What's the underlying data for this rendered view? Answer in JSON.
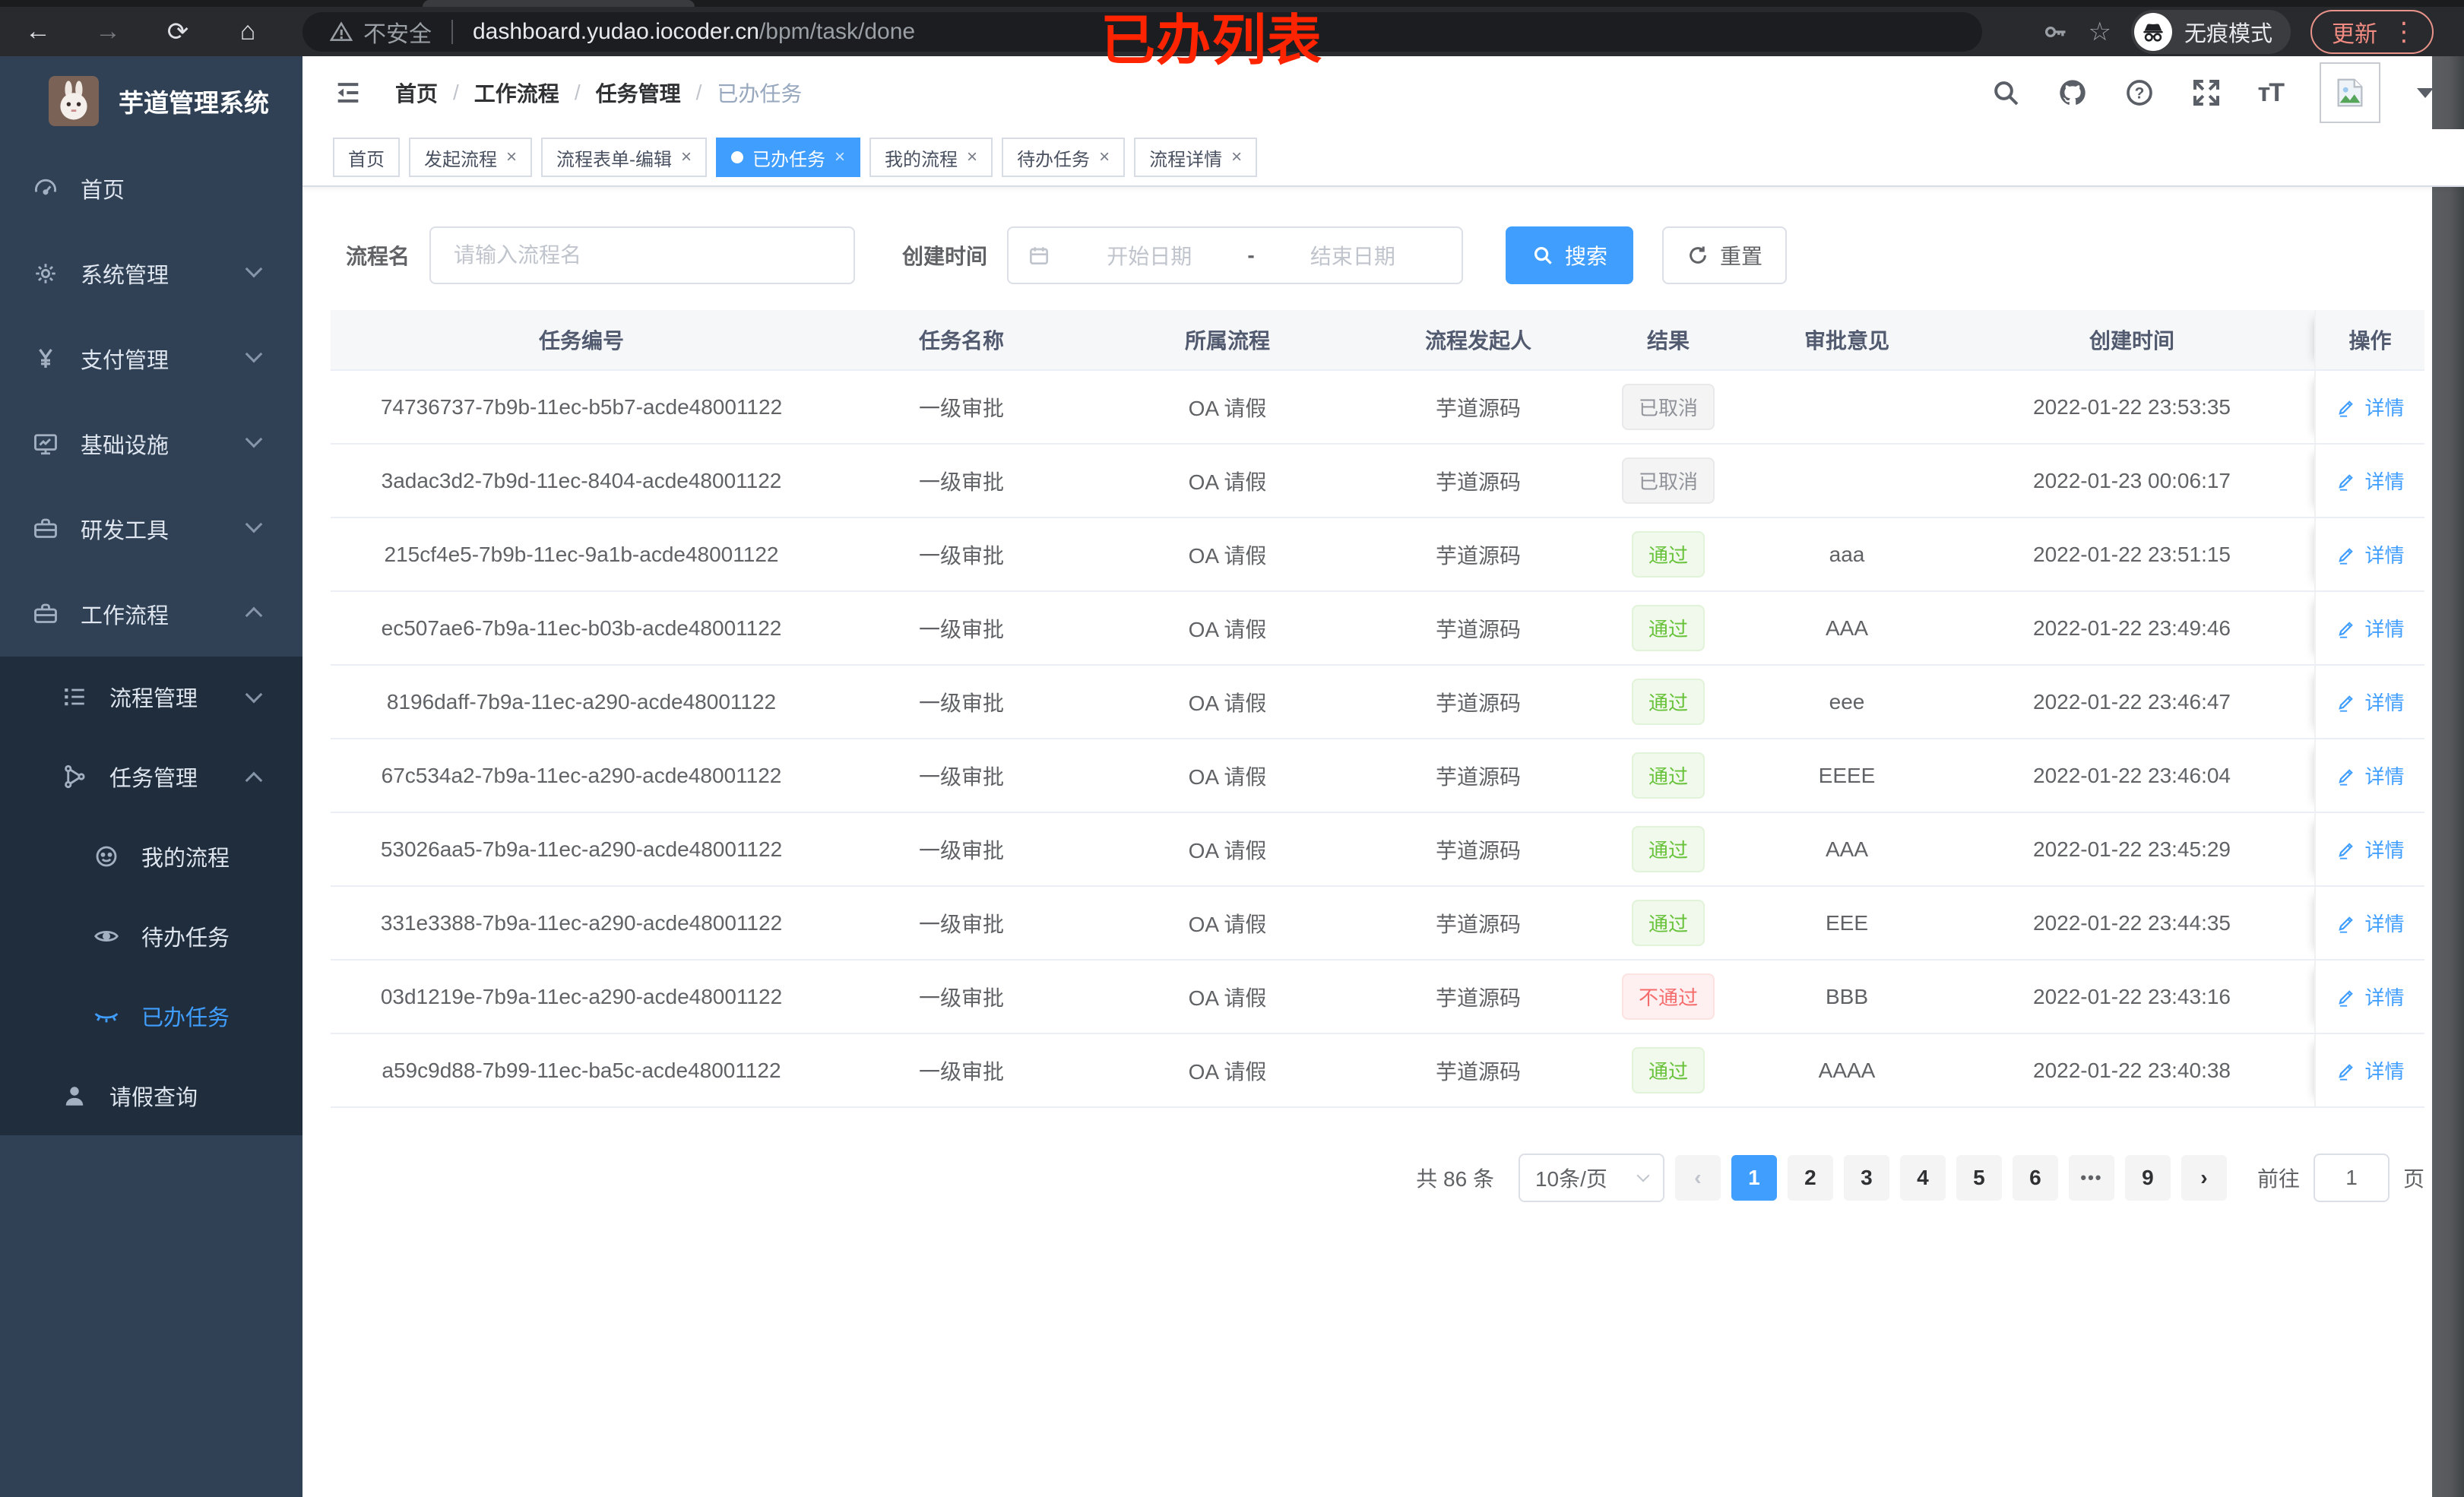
{
  "browser": {
    "security_label": "不安全",
    "url_host": "dashboard.yudao.iocoder.cn",
    "url_path": "/bpm/task/done",
    "incognito_label": "无痕模式",
    "update_label": "更新"
  },
  "annotation": {
    "text": "已办列表",
    "color": "#ff2400"
  },
  "sidebar": {
    "app_title": "芋道管理系统",
    "items": [
      {
        "label": "首页",
        "icon": "gauge-icon",
        "level": 1
      },
      {
        "label": "系统管理",
        "icon": "gear-icon",
        "level": 1,
        "chevron": "down"
      },
      {
        "label": "支付管理",
        "icon": "yen-icon",
        "level": 1,
        "chevron": "down"
      },
      {
        "label": "基础设施",
        "icon": "monitor-icon",
        "level": 1,
        "chevron": "down"
      },
      {
        "label": "研发工具",
        "icon": "toolbox-icon",
        "level": 1,
        "chevron": "down"
      },
      {
        "label": "工作流程",
        "icon": "toolbox-icon",
        "level": 1,
        "chevron": "up"
      },
      {
        "label": "流程管理",
        "icon": "list-tree-icon",
        "level": 2,
        "chevron": "down",
        "submenu": true
      },
      {
        "label": "任务管理",
        "icon": "flow-icon",
        "level": 2,
        "chevron": "up",
        "submenu": true
      },
      {
        "label": "我的流程",
        "icon": "face-icon",
        "level": 3,
        "submenu": true
      },
      {
        "label": "待办任务",
        "icon": "eye-icon",
        "level": 3,
        "submenu": true
      },
      {
        "label": "已办任务",
        "icon": "eye-closed-icon",
        "level": 3,
        "submenu": true,
        "active": true
      },
      {
        "label": "请假查询",
        "icon": "user-icon",
        "level": 2,
        "submenu": true
      }
    ]
  },
  "header": {
    "breadcrumb": [
      {
        "label": "首页"
      },
      {
        "label": "工作流程"
      },
      {
        "label": "任务管理"
      },
      {
        "label": "已办任务",
        "current": true
      }
    ]
  },
  "tabs": [
    {
      "label": "首页",
      "closable": false
    },
    {
      "label": "发起流程",
      "closable": true
    },
    {
      "label": "流程表单-编辑",
      "closable": true
    },
    {
      "label": "已办任务",
      "closable": true,
      "active": true
    },
    {
      "label": "我的流程",
      "closable": true
    },
    {
      "label": "待办任务",
      "closable": true
    },
    {
      "label": "流程详情",
      "closable": true
    }
  ],
  "filters": {
    "name_label": "流程名",
    "name_placeholder": "请输入流程名",
    "time_label": "创建时间",
    "start_placeholder": "开始日期",
    "range_separator": "-",
    "end_placeholder": "结束日期",
    "search_label": "搜索",
    "reset_label": "重置"
  },
  "table": {
    "columns": [
      "任务编号",
      "任务名称",
      "所属流程",
      "流程发起人",
      "结果",
      "审批意见",
      "创建时间",
      "操作"
    ],
    "action_label": "详情",
    "rows": [
      {
        "id": "74736737-7b9b-11ec-b5b7-acde48001122",
        "name": "一级审批",
        "process": "OA 请假",
        "starter": "芋道源码",
        "result": "已取消",
        "result_type": "cancelled",
        "comment": "",
        "created": "2022-01-22 23:53:35"
      },
      {
        "id": "3adac3d2-7b9d-11ec-8404-acde48001122",
        "name": "一级审批",
        "process": "OA 请假",
        "starter": "芋道源码",
        "result": "已取消",
        "result_type": "cancelled",
        "comment": "",
        "created": "2022-01-23 00:06:17"
      },
      {
        "id": "215cf4e5-7b9b-11ec-9a1b-acde48001122",
        "name": "一级审批",
        "process": "OA 请假",
        "starter": "芋道源码",
        "result": "通过",
        "result_type": "pass",
        "comment": "aaa",
        "created": "2022-01-22 23:51:15"
      },
      {
        "id": "ec507ae6-7b9a-11ec-b03b-acde48001122",
        "name": "一级审批",
        "process": "OA 请假",
        "starter": "芋道源码",
        "result": "通过",
        "result_type": "pass",
        "comment": "AAA",
        "created": "2022-01-22 23:49:46"
      },
      {
        "id": "8196daff-7b9a-11ec-a290-acde48001122",
        "name": "一级审批",
        "process": "OA 请假",
        "starter": "芋道源码",
        "result": "通过",
        "result_type": "pass",
        "comment": "eee",
        "created": "2022-01-22 23:46:47"
      },
      {
        "id": "67c534a2-7b9a-11ec-a290-acde48001122",
        "name": "一级审批",
        "process": "OA 请假",
        "starter": "芋道源码",
        "result": "通过",
        "result_type": "pass",
        "comment": "EEEE",
        "created": "2022-01-22 23:46:04"
      },
      {
        "id": "53026aa5-7b9a-11ec-a290-acde48001122",
        "name": "一级审批",
        "process": "OA 请假",
        "starter": "芋道源码",
        "result": "通过",
        "result_type": "pass",
        "comment": "AAA",
        "created": "2022-01-22 23:45:29"
      },
      {
        "id": "331e3388-7b9a-11ec-a290-acde48001122",
        "name": "一级审批",
        "process": "OA 请假",
        "starter": "芋道源码",
        "result": "通过",
        "result_type": "pass",
        "comment": "EEE",
        "created": "2022-01-22 23:44:35"
      },
      {
        "id": "03d1219e-7b9a-11ec-a290-acde48001122",
        "name": "一级审批",
        "process": "OA 请假",
        "starter": "芋道源码",
        "result": "不通过",
        "result_type": "reject",
        "comment": "BBB",
        "created": "2022-01-22 23:43:16"
      },
      {
        "id": "a59c9d88-7b99-11ec-ba5c-acde48001122",
        "name": "一级审批",
        "process": "OA 请假",
        "starter": "芋道源码",
        "result": "通过",
        "result_type": "pass",
        "comment": "AAAA",
        "created": "2022-01-22 23:40:38"
      }
    ]
  },
  "pagination": {
    "total_text": "共 86 条",
    "page_size": "10条/页",
    "pages": [
      {
        "label": "1",
        "active": true
      },
      {
        "label": "2"
      },
      {
        "label": "3"
      },
      {
        "label": "4"
      },
      {
        "label": "5"
      },
      {
        "label": "6"
      },
      {
        "label": "•••",
        "more": true
      },
      {
        "label": "9"
      }
    ],
    "goto_label": "前往",
    "goto_value": "1",
    "goto_suffix": "页"
  },
  "colors": {
    "accent": "#409eff",
    "success": "#67c23a",
    "danger": "#f56c6c",
    "info": "#909399",
    "sidebar_bg": "#304156",
    "submenu_bg": "#1f2d3d"
  }
}
